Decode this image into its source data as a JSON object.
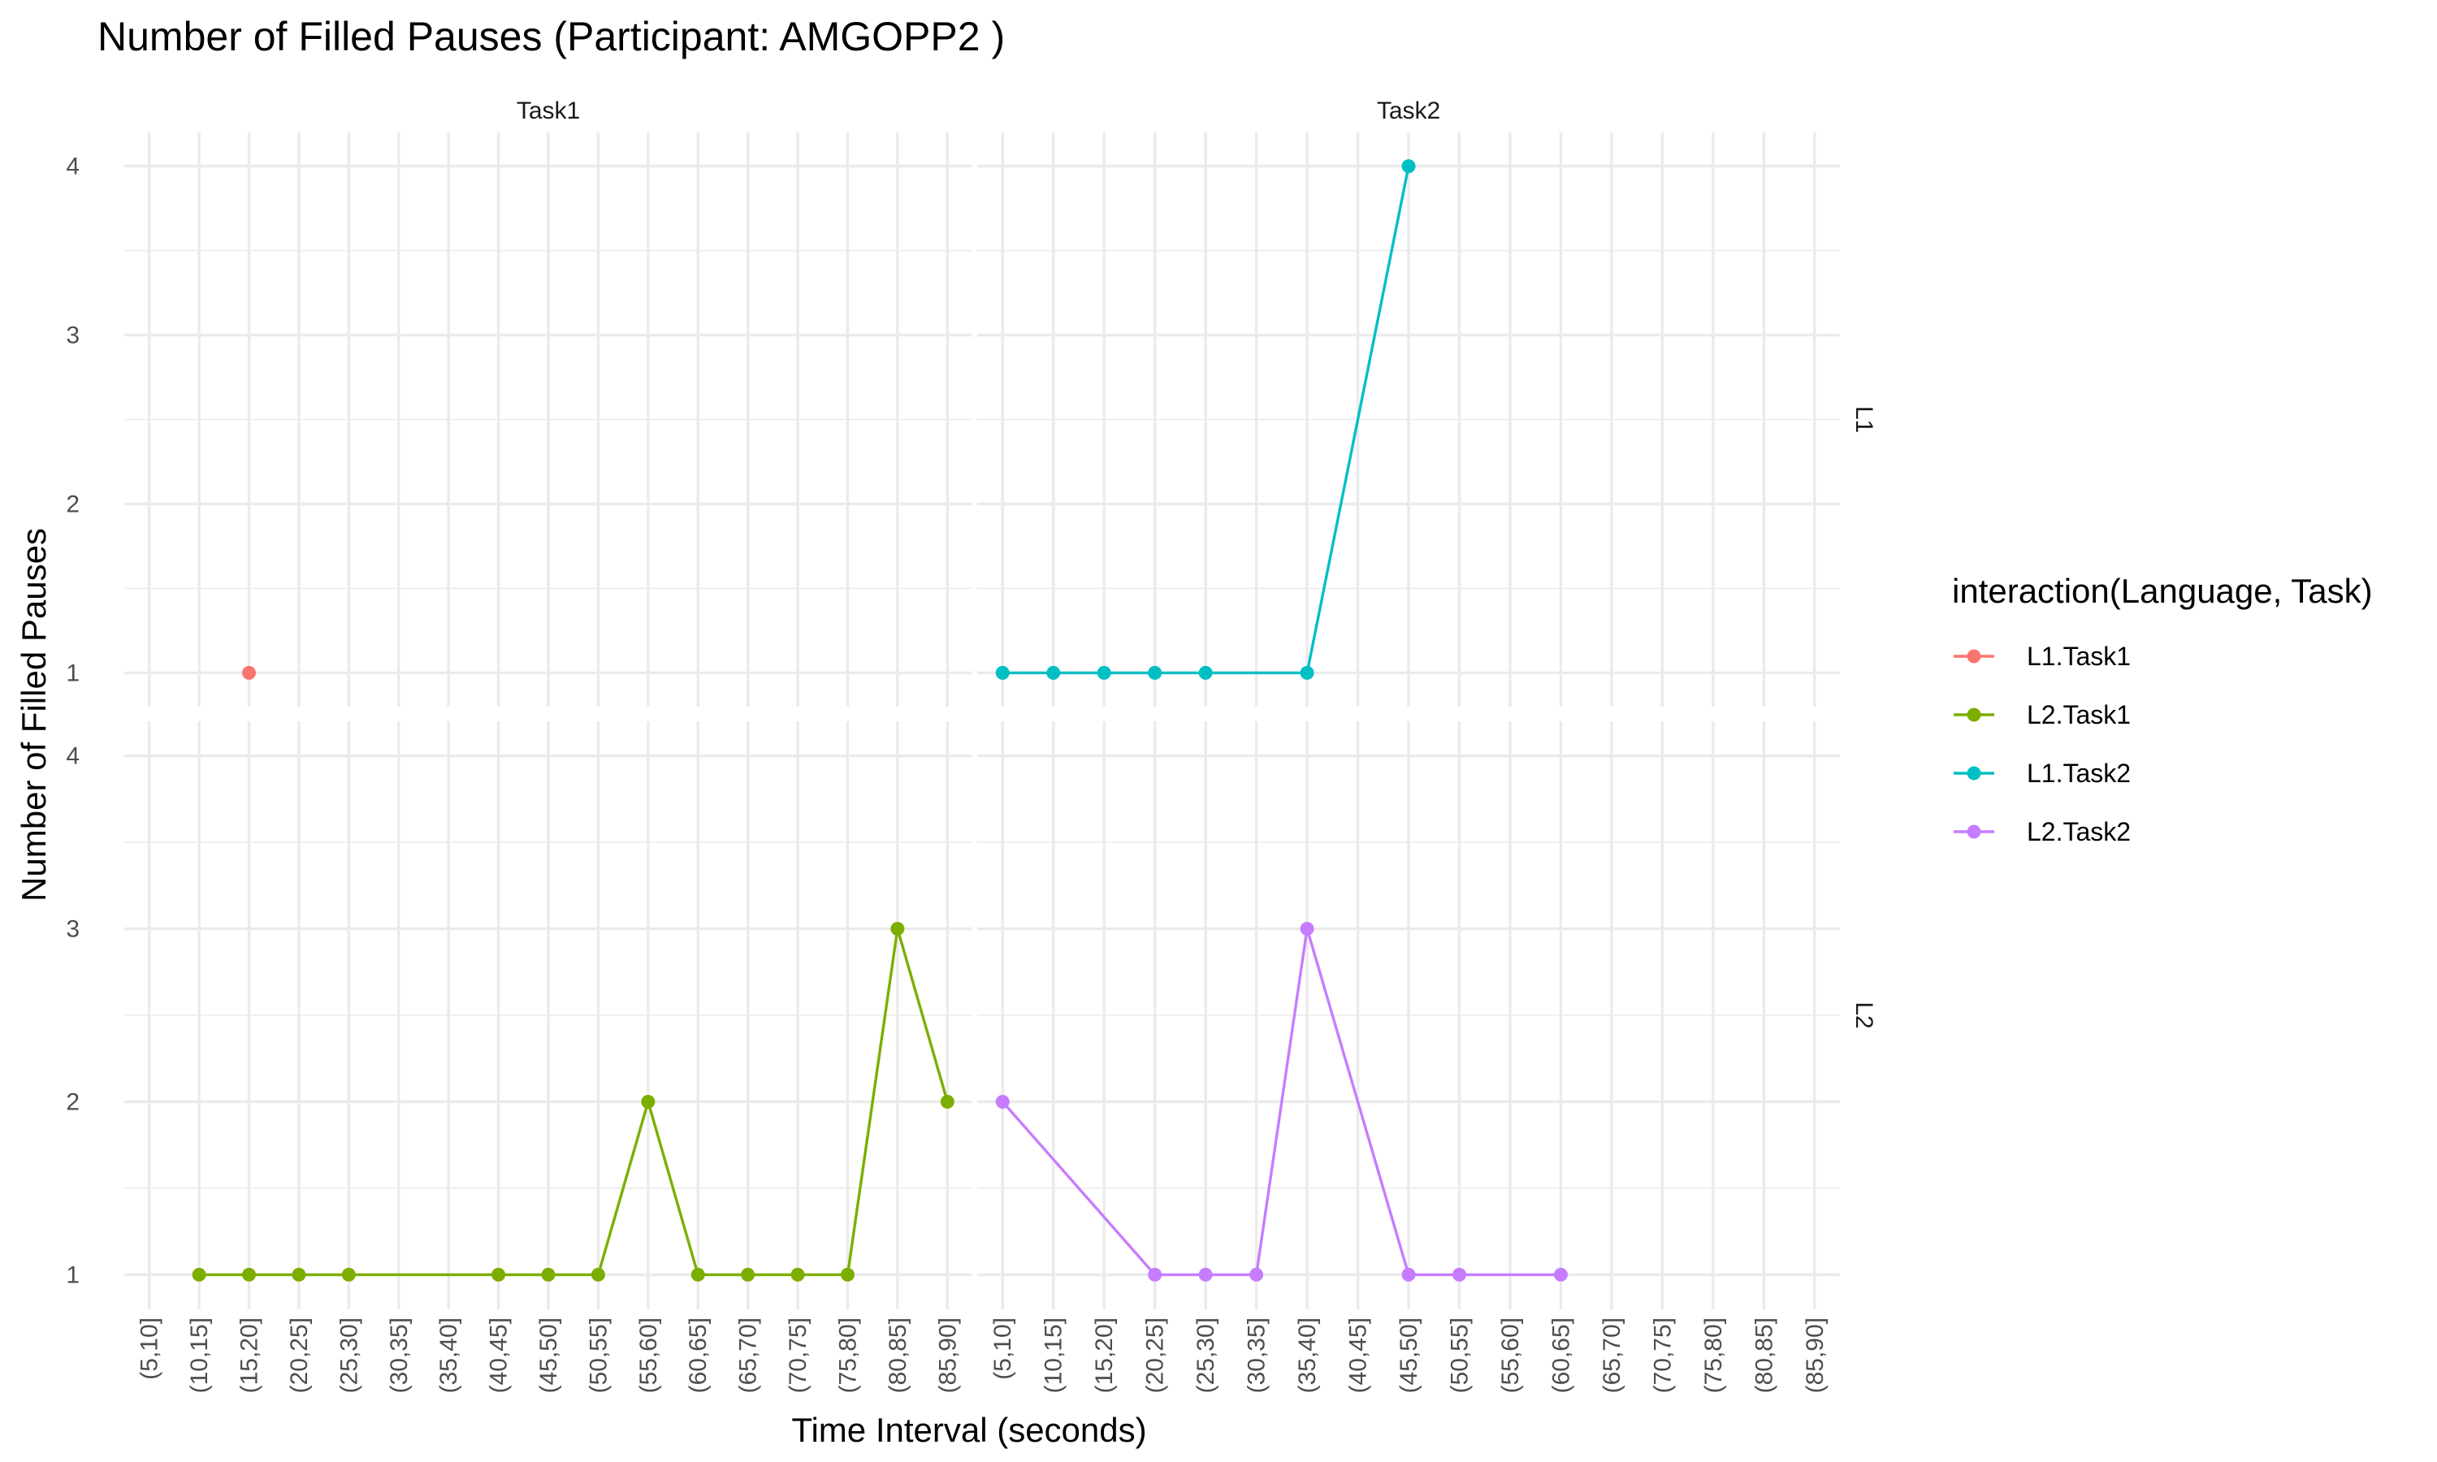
{
  "chart_data": {
    "type": "line",
    "title": "Number of Filled Pauses (Participant: AMGOPP2 )",
    "xlabel": "Time Interval (seconds)",
    "ylabel": "Number of Filled Pauses",
    "categories": [
      "(5,10]",
      "(10,15]",
      "(15,20]",
      "(20,25]",
      "(25,30]",
      "(30,35]",
      "(35,40]",
      "(40,45]",
      "(45,50]",
      "(50,55]",
      "(55,60]",
      "(60,65]",
      "(65,70]",
      "(70,75]",
      "(75,80]",
      "(80,85]",
      "(85,90]"
    ],
    "yticks": [
      1,
      2,
      3,
      4
    ],
    "ylim": [
      0.8,
      4.2
    ],
    "grid": true,
    "facet_cols": [
      "Task1",
      "Task2"
    ],
    "facet_rows": [
      "L1",
      "L2"
    ],
    "legend_title": "interaction(Language, Task)",
    "legend_position": "right",
    "series": [
      {
        "name": "L1.Task1",
        "color": "#F8766D",
        "row": "L1",
        "col": "Task1",
        "x": [
          "(15,20]"
        ],
        "y": [
          1
        ]
      },
      {
        "name": "L2.Task1",
        "color": "#7CAE00",
        "row": "L2",
        "col": "Task1",
        "x": [
          "(10,15]",
          "(15,20]",
          "(20,25]",
          "(25,30]",
          "(40,45]",
          "(45,50]",
          "(50,55]",
          "(55,60]",
          "(60,65]",
          "(65,70]",
          "(70,75]",
          "(75,80]",
          "(80,85]",
          "(85,90]"
        ],
        "y": [
          1,
          1,
          1,
          1,
          1,
          1,
          1,
          2,
          1,
          1,
          1,
          1,
          3,
          2
        ]
      },
      {
        "name": "L1.Task2",
        "color": "#00BFC4",
        "row": "L1",
        "col": "Task2",
        "x": [
          "(5,10]",
          "(10,15]",
          "(15,20]",
          "(20,25]",
          "(25,30]",
          "(35,40]",
          "(45,50]"
        ],
        "y": [
          1,
          1,
          1,
          1,
          1,
          1,
          4
        ]
      },
      {
        "name": "L2.Task2",
        "color": "#C77CFF",
        "row": "L2",
        "col": "Task2",
        "x": [
          "(5,10]",
          "(20,25]",
          "(25,30]",
          "(30,35]",
          "(35,40]",
          "(45,50]",
          "(50,55]",
          "(60,65]"
        ],
        "y": [
          2,
          1,
          1,
          1,
          3,
          1,
          1,
          1
        ]
      }
    ]
  }
}
